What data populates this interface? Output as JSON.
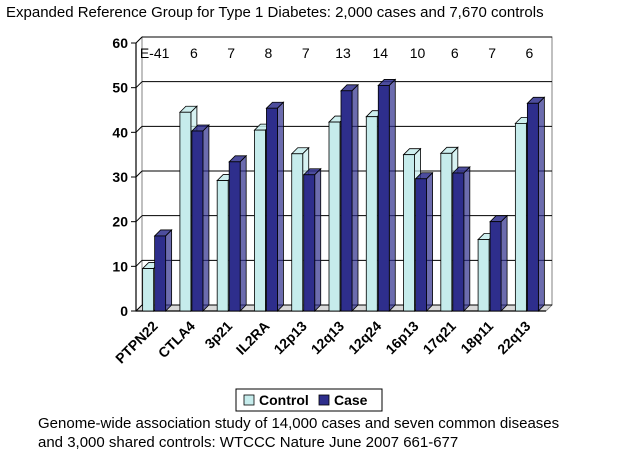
{
  "title": "Expanded Reference Group for Type 1 Diabetes:  2,000 cases and 7,670 controls",
  "caption": {
    "line1": "Genome-wide association study of 14,000 cases and seven common diseases",
    "line2": "and 3,000 shared controls:  WTCCC Nature June 2007 661-677"
  },
  "colors": {
    "control": "#c6ecec",
    "case": "#2e2e8c",
    "edge": "#000000"
  },
  "chart_data": {
    "type": "bar",
    "categories": [
      "PTPN22",
      "CTLA4",
      "3p21",
      "IL2RA",
      "12p13",
      "12q13",
      "12q24",
      "16p13",
      "17q21",
      "18p11",
      "22q13"
    ],
    "series": [
      {
        "name": "Control",
        "values": [
          9.5,
          44.5,
          29.2,
          40.5,
          35.2,
          42.3,
          43.5,
          35.0,
          35.3,
          16.0,
          42.0
        ]
      },
      {
        "name": "Case",
        "values": [
          16.8,
          40.3,
          33.4,
          45.4,
          30.5,
          49.3,
          50.5,
          29.6,
          30.9,
          20.0,
          46.5
        ]
      }
    ],
    "annotations": [
      "E-41",
      "6",
      "7",
      "8",
      "7",
      "13",
      "14",
      "10",
      "6",
      "7",
      "6"
    ],
    "ylim": [
      0,
      60
    ],
    "yticks": [
      0,
      10,
      20,
      30,
      40,
      50,
      60
    ],
    "grid": true,
    "legend": "bottom"
  }
}
